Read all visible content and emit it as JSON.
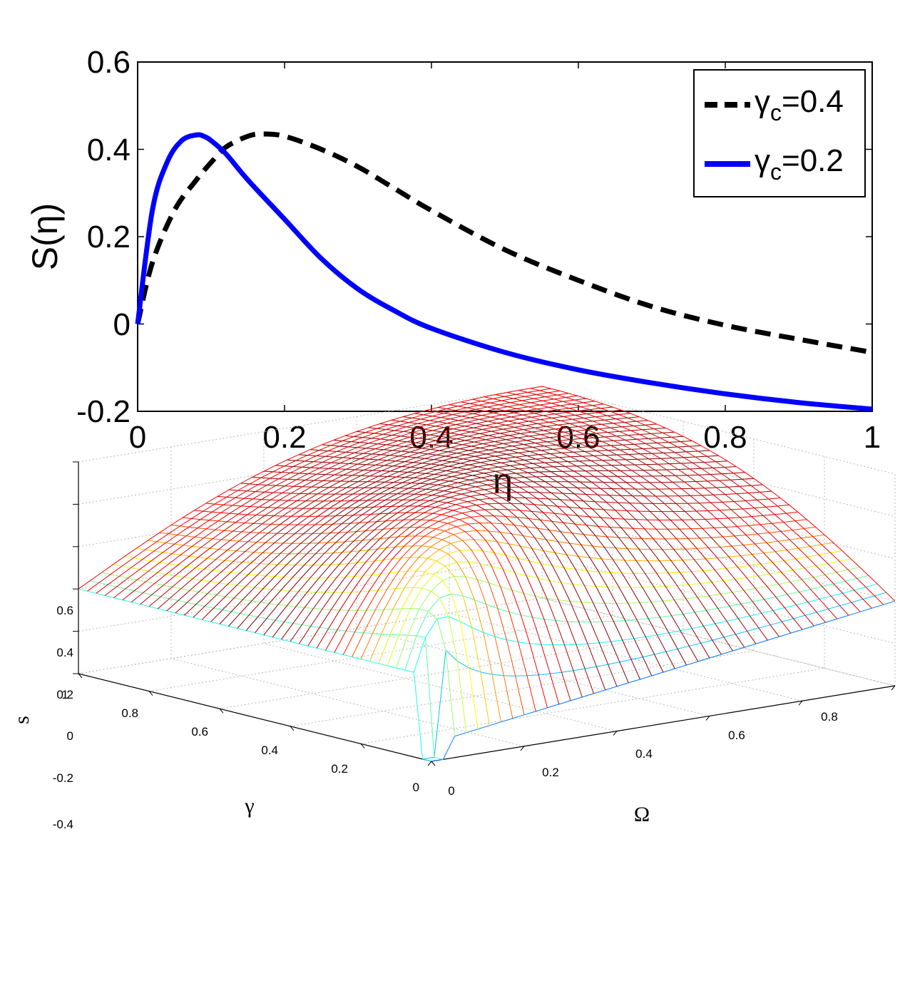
{
  "chart_data": [
    {
      "type": "line",
      "xlabel": "η",
      "ylabel": "S(η)",
      "xlim": [
        0,
        1
      ],
      "ylim": [
        -0.2,
        0.6
      ],
      "xticks": [
        "0",
        "0.2",
        "0.4",
        "0.6",
        "0.8",
        "1"
      ],
      "yticks": [
        "-0.2",
        "0",
        "0.2",
        "0.4",
        "0.6"
      ],
      "legend_position": "top-right",
      "grid": false,
      "series": [
        {
          "name": "γc=0.4",
          "legend_symbol": "γ",
          "legend_sub": "c",
          "legend_value": "=0.4",
          "style": "dashed",
          "color": "#000000",
          "x": [
            0,
            0.02,
            0.05,
            0.08,
            0.1,
            0.12,
            0.15,
            0.17,
            0.2,
            0.25,
            0.3,
            0.35,
            0.4,
            0.5,
            0.6,
            0.7,
            0.8,
            0.9,
            1.0
          ],
          "y": [
            0,
            0.14,
            0.26,
            0.33,
            0.37,
            0.405,
            0.43,
            0.435,
            0.43,
            0.4,
            0.36,
            0.31,
            0.26,
            0.17,
            0.1,
            0.04,
            -0.003,
            -0.035,
            -0.065
          ]
        },
        {
          "name": "γc=0.2",
          "legend_symbol": "γ",
          "legend_sub": "c",
          "legend_value": "=0.2",
          "style": "solid",
          "color": "#0000ff",
          "x": [
            0,
            0.02,
            0.04,
            0.06,
            0.08,
            0.09,
            0.1,
            0.12,
            0.15,
            0.2,
            0.25,
            0.3,
            0.35,
            0.4,
            0.5,
            0.6,
            0.7,
            0.8,
            0.9,
            1.0
          ],
          "y": [
            0,
            0.26,
            0.37,
            0.42,
            0.433,
            0.43,
            0.42,
            0.39,
            0.33,
            0.24,
            0.15,
            0.08,
            0.03,
            -0.01,
            -0.065,
            -0.105,
            -0.135,
            -0.16,
            -0.18,
            -0.195
          ]
        }
      ]
    },
    {
      "type": "surface",
      "style": "mesh",
      "colormap": "jet",
      "xlabel": "Ω",
      "ylabel": "γ",
      "zlabel": "s",
      "xlim": [
        0,
        1
      ],
      "ylim": [
        0,
        1
      ],
      "zlim": [
        -0.4,
        0.6
      ],
      "xticks": [
        "0",
        "0.2",
        "0.4",
        "0.6",
        "0.8"
      ],
      "yticks": [
        "0",
        "0.2",
        "0.4",
        "0.6",
        "0.8",
        "1"
      ],
      "zticks": [
        "-0.4",
        "-0.2",
        "0",
        "0.2",
        "0.4",
        "0.6"
      ],
      "grid": true,
      "surface_description_note": "mesh rises to ~0.6 along gamma≈Omega ridge, drops to -0.4 near Omega=0 gamma=0"
    }
  ]
}
